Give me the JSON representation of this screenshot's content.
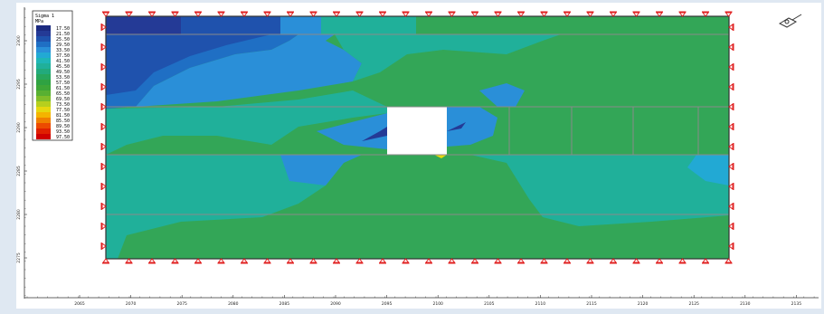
{
  "legend": {
    "title": "Sigma 1",
    "unit": "MPa",
    "entries": [
      {
        "label": "17.50",
        "color": "#1b2a80"
      },
      {
        "label": "21.50",
        "color": "#243a96"
      },
      {
        "label": "25.50",
        "color": "#1f52ad"
      },
      {
        "label": "29.50",
        "color": "#1f6fc4"
      },
      {
        "label": "33.50",
        "color": "#2a8fd8"
      },
      {
        "label": "37.50",
        "color": "#22a9d4"
      },
      {
        "label": "41.50",
        "color": "#1fb6b6"
      },
      {
        "label": "45.50",
        "color": "#20b09a"
      },
      {
        "label": "49.50",
        "color": "#22aa7c"
      },
      {
        "label": "53.50",
        "color": "#27a65c"
      },
      {
        "label": "57.50",
        "color": "#2fa242"
      },
      {
        "label": "61.50",
        "color": "#3ea637"
      },
      {
        "label": "65.50",
        "color": "#58b032"
      },
      {
        "label": "69.50",
        "color": "#80bd2a"
      },
      {
        "label": "73.50",
        "color": "#b6cf1e"
      },
      {
        "label": "77.50",
        "color": "#e6d80f"
      },
      {
        "label": "81.50",
        "color": "#f4b400"
      },
      {
        "label": "85.50",
        "color": "#f08000"
      },
      {
        "label": "89.50",
        "color": "#ec4a00"
      },
      {
        "label": "93.50",
        "color": "#e02000"
      },
      {
        "label": "97.50",
        "color": "#d00000"
      }
    ]
  },
  "axis": {
    "x_ticks": [
      "2065",
      "2070",
      "2075",
      "2080",
      "2085",
      "2090",
      "2095",
      "2100",
      "2105",
      "2110",
      "2115",
      "2120",
      "2125",
      "2130",
      "2135"
    ],
    "y_ticks": [
      "2300",
      "2295",
      "2290",
      "2285",
      "2280",
      "2275"
    ]
  }
}
